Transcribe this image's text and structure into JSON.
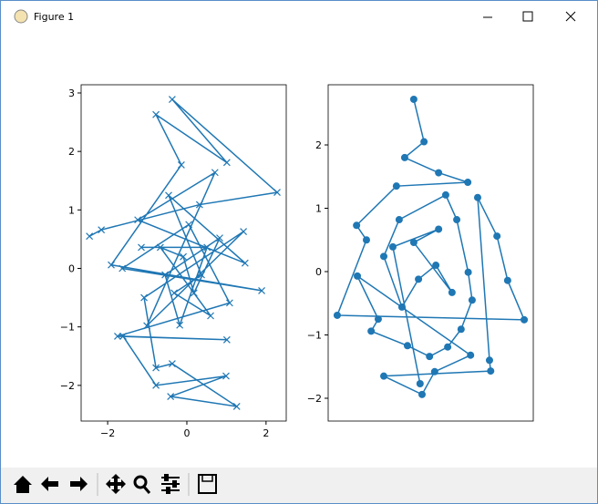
{
  "window": {
    "title": "Figure 1"
  },
  "chart_data": [
    {
      "type": "line",
      "marker": "x",
      "color": "#1f77b4",
      "x": [
        -2.46,
        -2.16,
        0.32,
        2.28,
        -0.37,
        1.01,
        -0.78,
        -0.14,
        -1.91,
        1.89,
        -1.63,
        0.05,
        1.08,
        -1.75,
        1.01,
        -1.61,
        -0.78,
        0.99,
        -0.41,
        1.26,
        -0.37,
        -0.78,
        -1.08,
        1.43,
        -1.01,
        0.71,
        -1.24,
        1.47,
        -0.46,
        0.37,
        -0.32,
        0.6,
        -0.67,
        -0.09,
        0.18,
        0.83,
        -0.55,
        -0.18,
        0.51,
        -1.15
      ],
      "values": [
        0.55,
        0.66,
        1.09,
        1.3,
        2.89,
        1.81,
        2.63,
        1.77,
        0.06,
        -0.38,
        0,
        0.75,
        -0.59,
        -1.16,
        -1.22,
        -1.16,
        -2.0,
        -1.84,
        -2.19,
        -2.36,
        -1.63,
        -1.7,
        -0.5,
        0.63,
        -0.98,
        1.64,
        0.83,
        0.09,
        1.25,
        -0.11,
        -0.42,
        -0.81,
        0.36,
        0.2,
        -0.42,
        0.52,
        -0.11,
        -0.97,
        0.36,
        0.36
      ],
      "xlim": [
        -2.67,
        2.51
      ],
      "ylim": [
        -2.61,
        3.14
      ],
      "xticks": [
        {
          "value": -2,
          "label": "−2"
        },
        0,
        2
      ],
      "yticks": [
        {
          "value": -2,
          "label": "−2"
        },
        {
          "value": -1,
          "label": "−1"
        },
        0,
        1,
        2,
        3
      ]
    },
    {
      "type": "line",
      "marker": "o",
      "color": "#1f77b4",
      "x": [
        -0.43,
        -0.17,
        -0.66,
        0.2,
        0.94,
        -0.87,
        -1.88,
        -1.63,
        -2.37,
        2.37,
        1.95,
        1.68,
        1.19,
        1.49,
        1.52,
        -1.19,
        -0.22,
        0.1,
        1.01,
        -1.86,
        -1.33,
        -1.51,
        -0.59,
        -0.03,
        0.43,
        0.77,
        1.05,
        0.95,
        0.66,
        0.38,
        -0.8,
        -1.19,
        -0.73,
        -0.31,
        0.13,
        0.54,
        -0.43,
        0.2,
        -0.96,
        -0.27
      ],
      "values": [
        2.72,
        2.05,
        1.8,
        1.56,
        1.41,
        1.35,
        0.73,
        0.5,
        -0.69,
        -0.76,
        -0.14,
        0.56,
        1.17,
        -1.4,
        -1.57,
        -1.65,
        -1.94,
        -1.58,
        -1.32,
        -0.07,
        -0.75,
        -0.94,
        -1.17,
        -1.34,
        -1.19,
        -0.91,
        -0.45,
        -0.01,
        0.82,
        1.21,
        0.82,
        0.24,
        -0.56,
        -0.12,
        0.1,
        -0.33,
        0.46,
        0.67,
        0.39,
        -1.77
      ],
      "xlim": [
        -2.6,
        2.6
      ],
      "ylim": [
        -2.36,
        2.95
      ],
      "yticks": [
        {
          "value": -2,
          "label": "−2"
        },
        {
          "value": -1,
          "label": "−1"
        },
        0,
        1,
        2
      ]
    }
  ]
}
